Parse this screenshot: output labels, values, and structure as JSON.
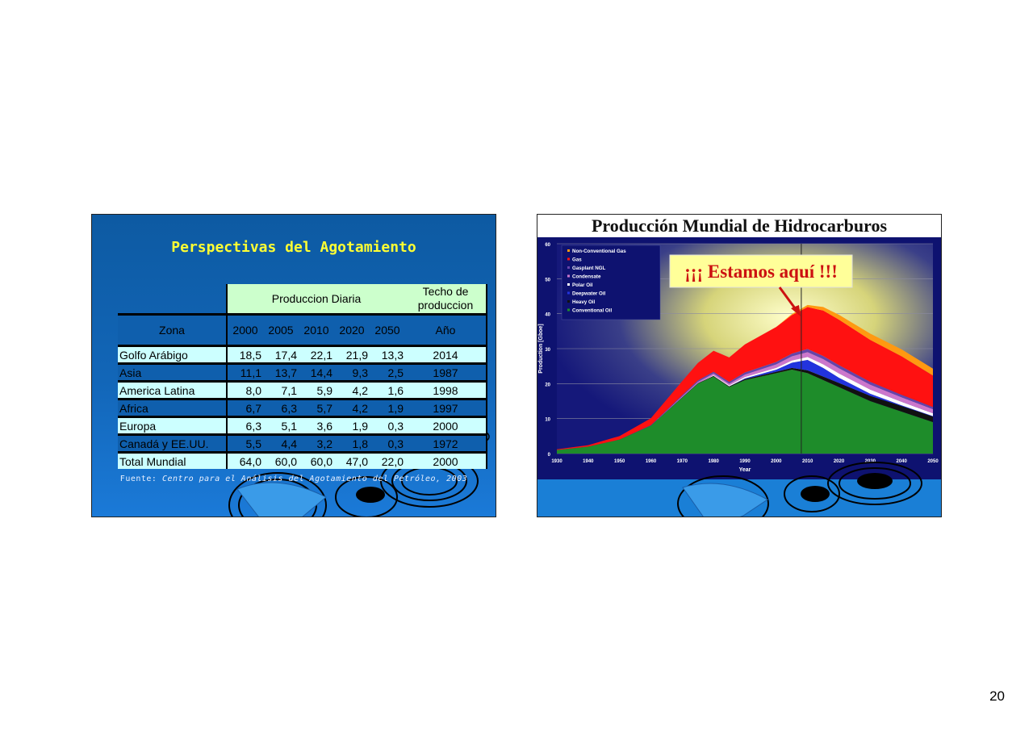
{
  "slide1": {
    "title": "Perspectivas del Agotamiento",
    "table": {
      "group_header": "Produccion Diaria",
      "peak_header_line1": "Techo de",
      "peak_header_line2": "produccion",
      "zone_header": "Zona",
      "years": [
        "2000",
        "2005",
        "2010",
        "2020",
        "2050"
      ],
      "year_header": "Año",
      "rows": [
        {
          "zona": "Golfo Arábigo",
          "values": [
            "18,5",
            "17,4",
            "22,1",
            "21,9",
            "13,3"
          ],
          "peak": "2014"
        },
        {
          "zona": "Asia",
          "values": [
            "11,1",
            "13,7",
            "14,4",
            "9,3",
            "2,5"
          ],
          "peak": "1987"
        },
        {
          "zona": "America Latina",
          "values": [
            "8,0",
            "7,1",
            "5,9",
            "4,2",
            "1,6"
          ],
          "peak": "1998"
        },
        {
          "zona": "Africa",
          "values": [
            "6,7",
            "6,3",
            "5,7",
            "4,2",
            "1,9"
          ],
          "peak": "1997"
        },
        {
          "zona": "Europa",
          "values": [
            "6,3",
            "5,1",
            "3,6",
            "1,9",
            "0,3"
          ],
          "peak": "2000"
        },
        {
          "zona": "Canadá y EE.UU.",
          "values": [
            "5,5",
            "4,4",
            "3,2",
            "1,8",
            "0,3"
          ],
          "peak": "1972"
        },
        {
          "zona": "Total Mundial",
          "values": [
            "64,0",
            "60,0",
            "60,0",
            "47,0",
            "22,0"
          ],
          "peak": "2000"
        }
      ]
    },
    "source_label": "Fuente:",
    "source_text": "Centro para el Análisis del Agotamiento del Petróleo, 2003"
  },
  "slide2": {
    "title": "Producción Mundial de Hidrocarburos",
    "callout": "¡¡¡ Estamos aquí !!!",
    "chart_data": {
      "type": "area",
      "title": "Producción Mundial de Hidrocarburos",
      "xlabel": "Year",
      "ylabel": "Production [Gboe]",
      "xlim": [
        1930,
        2050
      ],
      "ylim": [
        0,
        60
      ],
      "xticks": [
        1930,
        1940,
        1950,
        1960,
        1970,
        1980,
        1990,
        2000,
        2010,
        2020,
        2030,
        2040,
        2050
      ],
      "yticks": [
        0,
        10,
        20,
        30,
        40,
        50,
        60
      ],
      "legend_position": "top-left",
      "x": [
        1930,
        1940,
        1950,
        1960,
        1970,
        1975,
        1980,
        1985,
        1990,
        2000,
        2005,
        2010,
        2015,
        2020,
        2030,
        2040,
        2050
      ],
      "series": [
        {
          "name": "Conventional Oil",
          "color": "#1e8c2a",
          "values": [
            1,
            2,
            4,
            8,
            16,
            20,
            22,
            19,
            21,
            23,
            24,
            23,
            21,
            19,
            15,
            12,
            9
          ]
        },
        {
          "name": "Heavy Oil",
          "color": "#111111",
          "values": [
            0,
            0,
            0,
            0,
            0.1,
            0.1,
            0.2,
            0.2,
            0.3,
            0.4,
            0.5,
            0.8,
            1.0,
            1.2,
            1.5,
            1.6,
            1.6
          ]
        },
        {
          "name": "Deepwater Oil",
          "color": "#2233dd",
          "values": [
            0,
            0,
            0,
            0,
            0,
            0,
            0,
            0,
            0.2,
            0.6,
            1.5,
            3,
            2.5,
            1.5,
            0.6,
            0.2,
            0.1
          ]
        },
        {
          "name": "Polar Oil",
          "color": "#ffffff",
          "values": [
            0,
            0,
            0,
            0,
            0,
            0,
            0.2,
            0.3,
            0.4,
            0.5,
            0.6,
            0.8,
            1,
            1.2,
            1.2,
            1.0,
            0.8
          ]
        },
        {
          "name": "Condensate",
          "color": "#cc77cc",
          "values": [
            0,
            0,
            0,
            0,
            0.3,
            0.4,
            0.5,
            0.5,
            0.7,
            1.0,
            1.2,
            1.4,
            1.5,
            1.5,
            1.4,
            1.3,
            1.2
          ]
        },
        {
          "name": "Gasplant NGL",
          "color": "#6644aa",
          "values": [
            0,
            0,
            0,
            0.1,
            0.3,
            0.4,
            0.5,
            0.5,
            0.6,
            0.7,
            0.8,
            0.9,
            0.9,
            0.9,
            0.8,
            0.7,
            0.6
          ]
        },
        {
          "name": "Gas",
          "color": "#ff1111",
          "values": [
            0.2,
            0.4,
            1,
            2,
            4,
            5,
            6,
            7,
            8,
            10,
            11,
            12,
            13,
            13,
            12,
            11,
            9
          ]
        },
        {
          "name": "Non-Conventional Gas",
          "color": "#ff9911",
          "values": [
            0,
            0,
            0,
            0,
            0,
            0,
            0,
            0,
            0,
            0,
            0.3,
            0.6,
            1.0,
            1.4,
            1.8,
            2.0,
            2.0
          ]
        }
      ],
      "marker_year": 2008
    }
  },
  "page_number": "20"
}
